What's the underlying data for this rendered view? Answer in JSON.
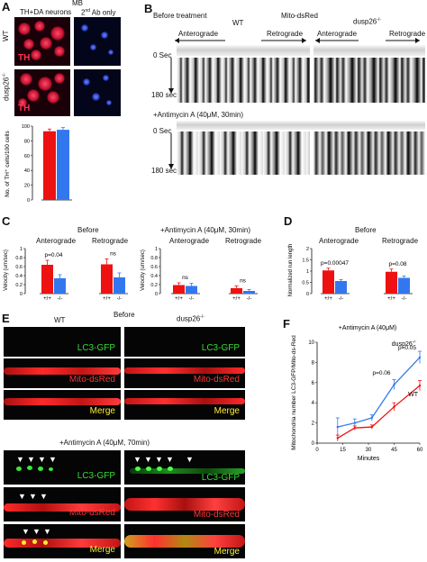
{
  "panel_letters": {
    "a": "A",
    "b": "B",
    "c": "C",
    "d": "D",
    "e": "E",
    "f": "F"
  },
  "panel_a": {
    "header": "MB",
    "col1": "TH+DA neurons",
    "col2_prefix": "2",
    "col2_sup": "nd",
    "col2_suffix": " Ab only",
    "row1": "WT",
    "row2": "dusp26",
    "row2_sup": "-/-",
    "stain": "TH",
    "colors": {
      "stain": "#ff3355",
      "red_bar": "#ee1111",
      "blue_bar": "#3377ee"
    }
  },
  "panel_b": {
    "before_label": "Before treatment",
    "wt": "WT",
    "mito": "Mito-dsRed",
    "ko": "dusp26",
    "ko_sup": "-/-",
    "antero": "Anterograde",
    "retro": "Retrograde",
    "t0": "0 Sec",
    "t180": "180 sec",
    "treat_label": "+Antimycin A (40μM, 30min)"
  },
  "panel_c": {
    "before": "Before",
    "treat": "+Antimycin A (40μM, 30min)",
    "antero": "Anterograde",
    "retro": "Retrograde",
    "ylabel1": "Velocity (um/sec)",
    "ylabel2": "Velocity (um/sec)",
    "x_wt": "+/+",
    "x_ko": "-/-"
  },
  "panel_d": {
    "before": "Before",
    "antero": "Anterograde",
    "retro": "Retrograde",
    "ylabel": "Normalized run length",
    "x_wt": "+/+",
    "x_ko": "-/-"
  },
  "panel_e": {
    "wt": "WT",
    "before": "Before",
    "ko": "dusp26",
    "ko_sup": "-/-",
    "lc3": "LC3-GFP",
    "mito": "Mito-dsRed",
    "merge": "Merge",
    "treat": "+Antimycin A (40μM, 70min)",
    "colors": {
      "lc3": "#33dd33",
      "mito": "#ff3333",
      "merge": "#ffee33"
    }
  },
  "chart_data": [
    {
      "id": "A-bar",
      "type": "bar",
      "ylabel": "No. of TH⁺ cells/100 cells",
      "ylim": [
        0,
        100
      ],
      "yticks": [
        0,
        20,
        40,
        60,
        80,
        100
      ],
      "categories": [
        "",
        ""
      ],
      "values": [
        93,
        95
      ],
      "errors": [
        3,
        3
      ],
      "colors": [
        "#ee1111",
        "#3377ee"
      ]
    },
    {
      "id": "C-before-antero",
      "type": "bar",
      "title": "Anterograde",
      "ylim": [
        0,
        1
      ],
      "yticks": [
        0,
        0.2,
        0.4,
        0.6,
        0.8,
        1
      ],
      "categories": [
        "+/+",
        "-/-"
      ],
      "values": [
        0.64,
        0.34
      ],
      "errors": [
        0.1,
        0.08
      ],
      "annotation": "p=0.04",
      "colors": [
        "#ee1111",
        "#3377ee"
      ]
    },
    {
      "id": "C-before-retro",
      "type": "bar",
      "title": "Retrograde",
      "ylim": [
        0,
        1
      ],
      "categories": [
        "+/+",
        "-/-"
      ],
      "values": [
        0.65,
        0.36
      ],
      "errors": [
        0.12,
        0.1
      ],
      "annotation": "ns",
      "colors": [
        "#ee1111",
        "#3377ee"
      ]
    },
    {
      "id": "C-treat-antero",
      "type": "bar",
      "title": "Anterograde",
      "ylim": [
        0,
        1
      ],
      "yticks": [
        0,
        0.2,
        0.4,
        0.6,
        0.8,
        1
      ],
      "categories": [
        "+/+",
        "-/-"
      ],
      "values": [
        0.19,
        0.17
      ],
      "errors": [
        0.05,
        0.06
      ],
      "annotation": "ns",
      "colors": [
        "#ee1111",
        "#3377ee"
      ]
    },
    {
      "id": "C-treat-retro",
      "type": "bar",
      "title": "Retrograde",
      "ylim": [
        0,
        1
      ],
      "categories": [
        "+/+",
        "-/-"
      ],
      "values": [
        0.12,
        0.06
      ],
      "errors": [
        0.05,
        0.03
      ],
      "annotation": "ns",
      "colors": [
        "#ee1111",
        "#3377ee"
      ]
    },
    {
      "id": "D-antero",
      "type": "bar",
      "title": "Anterograde",
      "ylim": [
        0,
        2
      ],
      "yticks": [
        0,
        0.5,
        1,
        1.5,
        2
      ],
      "categories": [
        "+/+",
        "-/-"
      ],
      "values": [
        1.03,
        0.56
      ],
      "errors": [
        0.1,
        0.06
      ],
      "annotation": "p=0.00047",
      "colors": [
        "#ee1111",
        "#3377ee"
      ]
    },
    {
      "id": "D-retro",
      "type": "bar",
      "title": "Retrograde",
      "ylim": [
        0,
        2
      ],
      "categories": [
        "+/+",
        "-/-"
      ],
      "values": [
        0.97,
        0.7
      ],
      "errors": [
        0.12,
        0.08
      ],
      "annotation": "p=0.08",
      "colors": [
        "#ee1111",
        "#3377ee"
      ]
    },
    {
      "id": "F-line",
      "type": "line",
      "title": "+Antimycin A (40μM)",
      "xlabel": "Minutes",
      "ylabel": "Mitochondria number LC3-GFP/Mito-ds-Red",
      "xlim": [
        0,
        60
      ],
      "ylim": [
        0,
        10
      ],
      "xticks": [
        0,
        15,
        30,
        45,
        60
      ],
      "yticks": [
        0,
        2,
        4,
        6,
        8,
        10
      ],
      "x": [
        12,
        22,
        32,
        45,
        60
      ],
      "series": [
        {
          "name": "dusp26",
          "name_sup": "-/-",
          "color": "#3377ee",
          "values": [
            1.6,
            2.0,
            2.5,
            5.8,
            8.5
          ],
          "errors": [
            0.9,
            0.4,
            0.3,
            0.5,
            0.6
          ]
        },
        {
          "name": "WT",
          "color": "#ee1111",
          "values": [
            0.5,
            1.5,
            1.6,
            3.6,
            5.7
          ],
          "errors": [
            0.3,
            0.2,
            0.2,
            0.4,
            0.5
          ]
        }
      ],
      "annotations": [
        "p=0.06",
        "p=0.05"
      ]
    }
  ]
}
